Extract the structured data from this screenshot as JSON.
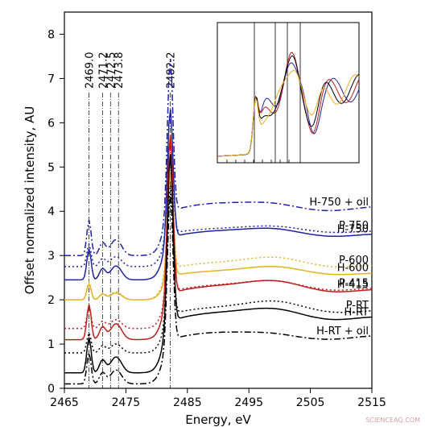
{
  "chart_data": {
    "type": "line",
    "title": "",
    "xlabel": "Energy, eV",
    "ylabel": "Offset normalized intensity, AU",
    "xlim": [
      2465,
      2515
    ],
    "ylim": [
      0,
      8.5
    ],
    "x_ticks": [
      "2465",
      "2475",
      "2485",
      "2495",
      "2505",
      "2515"
    ],
    "y_ticks": [
      "0",
      "1",
      "2",
      "3",
      "4",
      "5",
      "6",
      "7",
      "8"
    ],
    "grid": false,
    "reference_lines": [
      {
        "x": 2469.0,
        "label": "2469.0"
      },
      {
        "x": 2471.2,
        "label": "2471.2"
      },
      {
        "x": 2472.5,
        "label": "2472.5"
      },
      {
        "x": 2473.8,
        "label": "2473.8"
      },
      {
        "x": 2482.2,
        "label": "2482.2"
      }
    ],
    "series": [
      {
        "name": "H-750 + oil",
        "color": "#1f23a0",
        "dash": "8,3,2,3",
        "offset": 3.0,
        "peak": 3.55,
        "wl": 1.2,
        "pre": 0.8,
        "mid": 0.45,
        "tail": 0.25
      },
      {
        "name": "P-750",
        "color": "#1f23a0",
        "dash": "2,3",
        "offset": 2.75,
        "peak": 2.2,
        "wl": 0.9,
        "pre": 0.5,
        "mid": 0.25,
        "tail": 0.2
      },
      {
        "name": "H-750",
        "color": "#1f23a0",
        "dash": "",
        "offset": 2.45,
        "peak": 3.0,
        "wl": 1.15,
        "pre": 0.7,
        "mid": 0.35,
        "tail": 0.25
      },
      {
        "name": "P-600",
        "color": "#e5b227",
        "dash": "2,3",
        "offset": 2.0,
        "peak": 2.5,
        "wl": 0.85,
        "pre": 0.4,
        "mid": 0.3,
        "tail": 0.3
      },
      {
        "name": "H-600",
        "color": "#e5b227",
        "dash": "",
        "offset": 2.0,
        "peak": 2.4,
        "wl": 0.65,
        "pre": 0.35,
        "mid": 0.25,
        "tail": 0.25
      },
      {
        "name": "P-415",
        "color": "#c01c1c",
        "dash": "2,3",
        "offset": 1.35,
        "peak": 3.1,
        "wl": 1.0,
        "pre": 0.45,
        "mid": 0.35,
        "tail": 0.3
      },
      {
        "name": "H-415",
        "color": "#c01c1c",
        "dash": "",
        "offset": 1.1,
        "peak": 3.7,
        "wl": 1.25,
        "pre": 0.8,
        "mid": 0.4,
        "tail": 0.35
      },
      {
        "name": "P-RT",
        "color": "#000000",
        "dash": "2,3",
        "offset": 0.8,
        "peak": 3.0,
        "wl": 1.05,
        "pre": 0.45,
        "mid": 0.35,
        "tail": 0.35
      },
      {
        "name": "H-RT",
        "color": "#000000",
        "dash": "",
        "offset": 0.35,
        "peak": 3.9,
        "wl": 1.4,
        "pre": 0.8,
        "mid": 0.45,
        "tail": 0.35
      },
      {
        "name": "H-RT + oil",
        "color": "#000000",
        "dash": "8,3,2,3",
        "offset": 0.1,
        "peak": 3.4,
        "wl": 1.2,
        "pre": 0.7,
        "mid": 0.4,
        "tail": 0.2
      }
    ],
    "inset": {
      "type": "line",
      "ticks_visible": false,
      "series_colors": [
        "#1f23a0",
        "#c01c1c",
        "#000000",
        "#e5b227"
      ]
    }
  },
  "watermark": "SCIENCEAQ.COM"
}
